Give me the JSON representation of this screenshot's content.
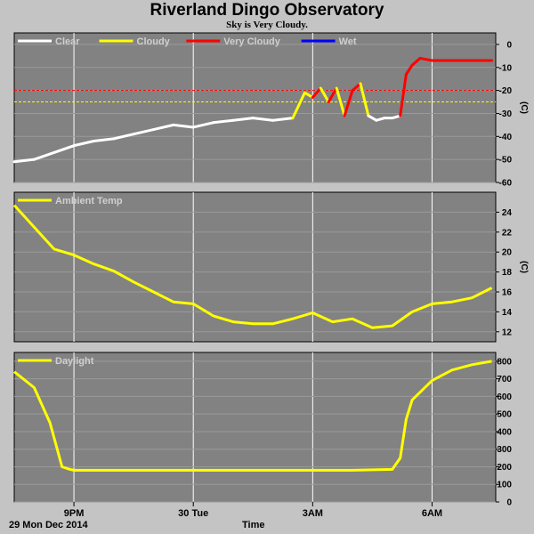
{
  "title": "Riverland Dingo Observatory",
  "subtitle": "Sky is Very Cloudy.",
  "footer": {
    "date": "29 Mon Dec 2014",
    "xlabel": "Time"
  },
  "colors": {
    "clear": "#ffffff",
    "cloudy": "#ffff00",
    "very_cloudy": "#ff0000",
    "wet": "#0000ff",
    "panel_bg": "#828282",
    "page_bg": "#c4c4c4"
  },
  "chart_data": [
    {
      "type": "line",
      "panel": "sky",
      "unit": "(C)",
      "ylim": [
        -60,
        5
      ],
      "yticks": [
        0,
        -10,
        -20,
        -30,
        -40,
        -50,
        -60
      ],
      "thresholds": [
        {
          "y": -20,
          "color": "#ff0000"
        },
        {
          "y": -25,
          "color": "#ffff00"
        }
      ],
      "legend": [
        {
          "name": "Clear",
          "color": "#ffffff"
        },
        {
          "name": "Cloudy",
          "color": "#ffff00"
        },
        {
          "name": "Very Cloudy",
          "color": "#ff0000"
        },
        {
          "name": "Wet",
          "color": "#0000ff"
        }
      ],
      "x": [
        19.5,
        20,
        20.5,
        21,
        21.5,
        22,
        22.5,
        23,
        23.5,
        24,
        24.5,
        25,
        25.5,
        26,
        26.5,
        26.8,
        27,
        27.2,
        27.4,
        27.6,
        27.8,
        28,
        28.2,
        28.4,
        28.6,
        28.8,
        29,
        29.2,
        29.35,
        29.5,
        29.7,
        30,
        30.5,
        31,
        31.5
      ],
      "y": [
        -51,
        -50,
        -47,
        -44,
        -42,
        -41,
        -39,
        -37,
        -35,
        -36,
        -34,
        -33,
        -32,
        -33,
        -32,
        -21,
        -23,
        -19,
        -25,
        -19,
        -31,
        -20,
        -17,
        -31,
        -33,
        -32,
        -32,
        -31,
        -13,
        -9,
        -6,
        -7,
        -7,
        -7,
        -7
      ],
      "state": [
        "clear",
        "clear",
        "clear",
        "clear",
        "clear",
        "clear",
        "clear",
        "clear",
        "clear",
        "clear",
        "clear",
        "clear",
        "clear",
        "clear",
        "clear",
        "cloudy",
        "cloudy",
        "very_cloudy",
        "cloudy",
        "very_cloudy",
        "cloudy",
        "very_cloudy",
        "very_cloudy",
        "cloudy",
        "clear",
        "clear",
        "clear",
        "clear",
        "very_cloudy",
        "very_cloudy",
        "very_cloudy",
        "very_cloudy",
        "very_cloudy",
        "very_cloudy",
        "very_cloudy"
      ]
    },
    {
      "type": "line",
      "panel": "ambient",
      "unit": "(C)",
      "ylim": [
        11,
        26
      ],
      "yticks": [
        24,
        22,
        20,
        18,
        16,
        14,
        12
      ],
      "series": [
        {
          "name": "Ambient Temp",
          "color": "#ffff00",
          "x": [
            19.5,
            20,
            20.5,
            21,
            21.5,
            22,
            22.5,
            23,
            23.5,
            24,
            24.5,
            25,
            25.5,
            26,
            26.5,
            27,
            27.5,
            28,
            28.5,
            29,
            29.5,
            30,
            30.5,
            31,
            31.5
          ],
          "y": [
            24.7,
            22.5,
            20.3,
            19.7,
            18.8,
            18.1,
            17,
            16,
            15,
            14.8,
            13.6,
            13,
            12.8,
            12.8,
            13.3,
            13.9,
            13,
            13.3,
            12.4,
            12.6,
            14,
            14.8,
            15,
            15.4,
            16.4
          ]
        }
      ]
    },
    {
      "type": "line",
      "panel": "daylight",
      "ylim": [
        0,
        850
      ],
      "yticks": [
        800,
        700,
        600,
        500,
        400,
        300,
        200,
        100,
        0
      ],
      "series": [
        {
          "name": "Daylight",
          "color": "#ffff00",
          "x": [
            19.5,
            20,
            20.4,
            20.7,
            20.9,
            21,
            21.5,
            22,
            23,
            24,
            25,
            26,
            27,
            28,
            29,
            29.2,
            29.35,
            29.5,
            30,
            30.5,
            31,
            31.5
          ],
          "y": [
            740,
            650,
            450,
            200,
            185,
            180,
            180,
            180,
            180,
            180,
            180,
            180,
            180,
            180,
            185,
            250,
            470,
            580,
            690,
            750,
            780,
            800
          ]
        }
      ]
    }
  ],
  "x_axis": {
    "ticks": [
      {
        "x": 21,
        "label": "9PM"
      },
      {
        "x": 24,
        "label": "30 Tue"
      },
      {
        "x": 27,
        "label": "3AM"
      },
      {
        "x": 30,
        "label": "6AM"
      }
    ]
  }
}
